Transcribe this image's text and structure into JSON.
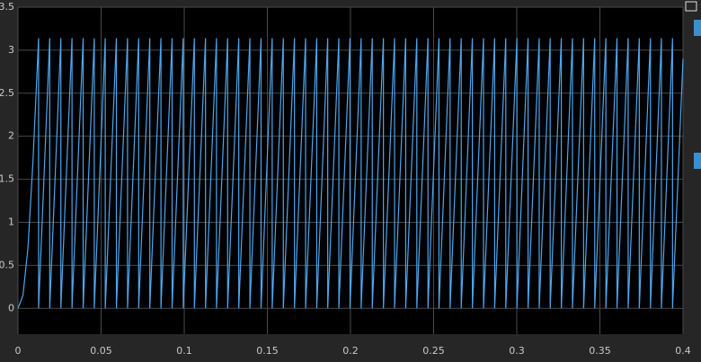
{
  "chart_data": {
    "type": "line",
    "xlim": [
      0,
      0.4
    ],
    "ylim": [
      -0.3,
      3.5
    ],
    "xticks": [
      0,
      0.05,
      0.1,
      0.15,
      0.2,
      0.25,
      0.3,
      0.35,
      0.4
    ],
    "yticks": [
      0,
      0.5,
      1,
      1.5,
      2,
      2.5,
      3,
      3.5
    ],
    "grid": true,
    "series": [
      {
        "color": "#4ea6ef",
        "x": [
          0,
          0.003,
          0.006,
          0.009,
          0.0124,
          0.0124,
          0.0191,
          0.0191,
          0.0258,
          0.0258,
          0.0325,
          0.0325,
          0.0392,
          0.0392,
          0.0459,
          0.0459,
          0.0525,
          0.0525,
          0.0592,
          0.0592,
          0.0659,
          0.0659,
          0.0726,
          0.0726,
          0.0793,
          0.0793,
          0.086,
          0.086,
          0.0927,
          0.0927,
          0.0994,
          0.0994,
          0.1061,
          0.1061,
          0.1128,
          0.1128,
          0.1194,
          0.1194,
          0.1261,
          0.1261,
          0.1328,
          0.1328,
          0.1395,
          0.1395,
          0.1462,
          0.1462,
          0.1529,
          0.1529,
          0.1596,
          0.1596,
          0.1663,
          0.1663,
          0.173,
          0.173,
          0.1797,
          0.1797,
          0.1863,
          0.1863,
          0.193,
          0.193,
          0.1997,
          0.1997,
          0.2064,
          0.2064,
          0.2131,
          0.2131,
          0.2198,
          0.2198,
          0.2265,
          0.2265,
          0.2332,
          0.2332,
          0.2399,
          0.2399,
          0.2466,
          0.2466,
          0.2532,
          0.2532,
          0.2599,
          0.2599,
          0.2666,
          0.2666,
          0.2733,
          0.2733,
          0.28,
          0.28,
          0.2867,
          0.2867,
          0.2934,
          0.2934,
          0.3001,
          0.3001,
          0.3068,
          0.3068,
          0.3135,
          0.3135,
          0.3201,
          0.3201,
          0.3268,
          0.3268,
          0.3335,
          0.3335,
          0.3402,
          0.3402,
          0.3469,
          0.3469,
          0.3536,
          0.3536,
          0.3603,
          0.3603,
          0.367,
          0.367,
          0.3737,
          0.3737,
          0.3804,
          0.3804,
          0.387,
          0.387,
          0.3937,
          0.3937,
          0.4
        ],
        "values": [
          0,
          0.15,
          0.7,
          1.7,
          3.14,
          0,
          3.14,
          0,
          3.14,
          0,
          3.14,
          0,
          3.14,
          0,
          3.14,
          0,
          3.14,
          0,
          3.14,
          0,
          3.14,
          0,
          3.14,
          0,
          3.14,
          0,
          3.14,
          0,
          3.14,
          0,
          3.14,
          0,
          3.14,
          0,
          3.14,
          0,
          3.14,
          0,
          3.14,
          0,
          3.14,
          0,
          3.14,
          0,
          3.14,
          0,
          3.14,
          0,
          3.14,
          0,
          3.14,
          0,
          3.14,
          0,
          3.14,
          0,
          3.14,
          0,
          3.14,
          0,
          3.14,
          0,
          3.14,
          0,
          3.14,
          0,
          3.14,
          0,
          3.14,
          0,
          3.14,
          0,
          3.14,
          0,
          3.14,
          0,
          3.14,
          0,
          3.14,
          0,
          3.14,
          0,
          3.14,
          0,
          3.14,
          0,
          3.14,
          0,
          3.14,
          0,
          3.14,
          0,
          3.14,
          0,
          3.14,
          0,
          3.14,
          0,
          3.14,
          0,
          3.14,
          0,
          3.14,
          0,
          3.14,
          0,
          3.14,
          0,
          3.14,
          0,
          3.14,
          0,
          3.14,
          0,
          3.14,
          0,
          3.14,
          0,
          3.14,
          0,
          2.9
        ]
      }
    ]
  }
}
